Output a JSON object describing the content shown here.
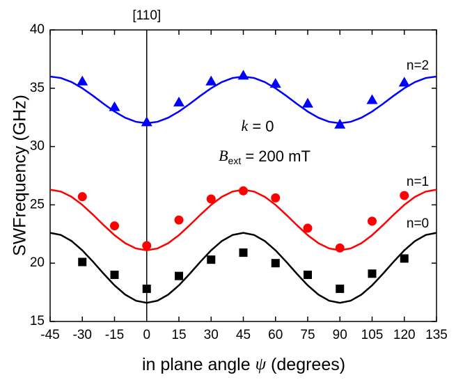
{
  "chart_data": {
    "type": "scatter",
    "ylabel": "SWFrequency (GHz)",
    "xlabel": {
      "before": "in plane angle ",
      "symbol": "ψ",
      "after": " (degrees)"
    },
    "xlim": [
      -45,
      135
    ],
    "ylim": [
      15,
      40
    ],
    "xticks": [
      -45,
      -30,
      -15,
      0,
      15,
      30,
      45,
      60,
      75,
      90,
      105,
      120,
      135
    ],
    "yticks": [
      15,
      20,
      25,
      30,
      35,
      40
    ],
    "reference_line": {
      "x": 0,
      "label": "[110]"
    },
    "annotation": {
      "k": "k",
      "k_rest": " = 0",
      "B": "B",
      "B_sub": "ext",
      "B_rest": " = 200 mT"
    },
    "x_points": [
      -30,
      -15,
      0,
      15,
      30,
      45,
      60,
      75,
      90,
      105,
      120
    ],
    "x_curve": [
      -45,
      -40,
      -35,
      -30,
      -25,
      -20,
      -15,
      -10,
      -5,
      0,
      5,
      10,
      15,
      20,
      25,
      30,
      35,
      40,
      45,
      50,
      55,
      60,
      65,
      70,
      75,
      80,
      85,
      90,
      95,
      100,
      105,
      110,
      115,
      120,
      125,
      130,
      135
    ],
    "series": [
      {
        "name": "n=2",
        "color": "#0000ff",
        "marker": "triangle",
        "values": [
          35.6,
          33.4,
          32.1,
          33.8,
          35.6,
          36.1,
          35.4,
          33.7,
          31.9,
          34.0,
          35.5
        ],
        "curve": [
          36,
          35.88,
          35.53,
          35,
          34.35,
          33.65,
          33,
          32.47,
          32.12,
          32,
          32.12,
          32.47,
          33,
          33.65,
          34.35,
          35,
          35.53,
          35.88,
          36,
          35.88,
          35.53,
          35,
          34.35,
          33.65,
          33,
          32.47,
          32.12,
          32,
          32.12,
          32.47,
          33,
          33.65,
          34.35,
          35,
          35.53,
          35.88,
          36
        ]
      },
      {
        "name": "n=1",
        "color": "#ff0000",
        "marker": "circle",
        "values": [
          25.7,
          23.2,
          21.5,
          23.7,
          25.5,
          26.2,
          25.6,
          23.0,
          21.3,
          23.6,
          25.8
        ],
        "curve": [
          26.3,
          26.14,
          25.69,
          25.0,
          24.15,
          23.25,
          22.4,
          21.71,
          21.26,
          21.1,
          21.26,
          21.71,
          22.4,
          23.25,
          24.15,
          25.0,
          25.69,
          26.14,
          26.3,
          26.14,
          25.69,
          25.0,
          24.15,
          23.25,
          22.4,
          21.71,
          21.26,
          21.1,
          21.26,
          21.71,
          22.4,
          23.25,
          24.15,
          25.0,
          25.69,
          26.14,
          26.3
        ]
      },
      {
        "name": "n=0",
        "color": "#000000",
        "marker": "square",
        "values": [
          20.1,
          19.0,
          17.8,
          18.9,
          20.3,
          20.9,
          20.0,
          19.0,
          17.8,
          19.1,
          20.4
        ],
        "curve": [
          22.6,
          22.42,
          21.9,
          21.1,
          20.12,
          19.08,
          18.1,
          17.3,
          16.78,
          16.6,
          16.78,
          17.3,
          18.1,
          19.08,
          20.12,
          21.1,
          21.9,
          22.42,
          22.6,
          22.42,
          21.9,
          21.1,
          20.12,
          19.08,
          18.1,
          17.3,
          16.78,
          16.6,
          16.78,
          17.3,
          18.1,
          19.08,
          20.12,
          21.1,
          21.9,
          22.42,
          22.6
        ]
      }
    ]
  }
}
